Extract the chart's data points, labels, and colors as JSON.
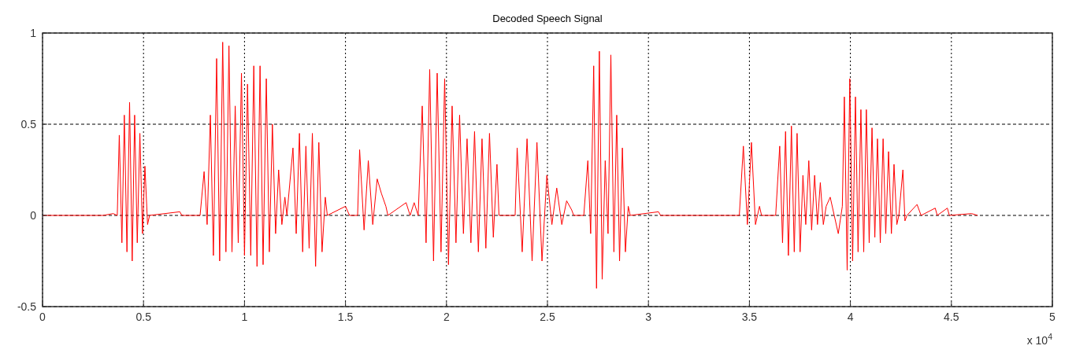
{
  "chart_data": {
    "type": "line",
    "title": "Decoded Speech Signal",
    "annotations": [
      "x 10$^{4}$"
    ],
    "grid": true,
    "line_style": "solid",
    "xlim": [
      0,
      5
    ],
    "xticks": [
      0,
      0.5,
      1,
      1.5,
      2,
      2.5,
      3,
      3.5,
      4,
      4.5,
      5
    ],
    "ylim": [
      -0.5,
      1
    ],
    "yticks": [
      -0.5,
      0,
      0.5,
      1
    ],
    "series": [
      {
        "color": "#ff0000",
        "x": [
          0,
          0.3,
          0.35,
          0.37,
          0.38,
          0.393,
          0.405,
          0.418,
          0.431,
          0.444,
          0.456,
          0.469,
          0.482,
          0.495,
          0.507,
          0.52,
          0.53,
          0.68,
          0.69,
          0.78,
          0.8,
          0.815,
          0.831,
          0.846,
          0.862,
          0.877,
          0.892,
          0.908,
          0.923,
          0.938,
          0.954,
          0.969,
          0.985,
          1.0,
          1.015,
          1.031,
          1.046,
          1.062,
          1.077,
          1.092,
          1.108,
          1.123,
          1.138,
          1.154,
          1.169,
          1.185,
          1.2,
          1.21,
          1.24,
          1.256,
          1.272,
          1.288,
          1.304,
          1.32,
          1.336,
          1.352,
          1.368,
          1.384,
          1.4,
          1.41,
          1.5,
          1.52,
          1.56,
          1.57,
          1.592,
          1.613,
          1.635,
          1.657,
          1.678,
          1.7,
          1.71,
          1.8,
          1.82,
          1.84,
          1.86,
          1.88,
          1.899,
          1.917,
          1.936,
          1.954,
          1.973,
          1.991,
          2.01,
          2.028,
          2.047,
          2.065,
          2.084,
          2.102,
          2.121,
          2.139,
          2.158,
          2.176,
          2.195,
          2.213,
          2.232,
          2.25,
          2.26,
          2.34,
          2.35,
          2.375,
          2.399,
          2.424,
          2.448,
          2.473,
          2.497,
          2.522,
          2.546,
          2.571,
          2.595,
          2.62,
          2.63,
          2.68,
          2.7,
          2.714,
          2.729,
          2.743,
          2.757,
          2.771,
          2.786,
          2.8,
          2.814,
          2.829,
          2.843,
          2.857,
          2.871,
          2.886,
          2.9,
          2.91,
          3.05,
          3.06,
          3.45,
          3.47,
          3.49,
          3.51,
          3.53,
          3.55,
          3.56,
          3.63,
          3.65,
          3.664,
          3.679,
          3.693,
          3.708,
          3.722,
          3.736,
          3.751,
          3.765,
          3.779,
          3.794,
          3.808,
          3.823,
          3.837,
          3.851,
          3.866,
          3.88,
          3.9,
          3.94,
          3.96,
          3.97,
          3.984,
          3.997,
          4.011,
          4.025,
          4.038,
          4.052,
          4.066,
          4.079,
          4.093,
          4.107,
          4.121,
          4.134,
          4.148,
          4.162,
          4.175,
          4.189,
          4.203,
          4.216,
          4.23,
          4.24,
          4.26,
          4.27,
          4.28,
          4.33,
          4.35,
          4.42,
          4.43,
          4.48,
          4.49,
          4.6,
          4.63
        ],
        "values": [
          0,
          0,
          0.01,
          0,
          0.44,
          -0.15,
          0.55,
          -0.2,
          0.62,
          -0.25,
          0.55,
          -0.15,
          0.45,
          -0.1,
          0.27,
          -0.05,
          0,
          0.02,
          0,
          0,
          0.24,
          -0.05,
          0.55,
          -0.22,
          0.86,
          -0.25,
          0.95,
          -0.2,
          0.93,
          -0.2,
          0.6,
          -0.15,
          0.78,
          -0.22,
          0.72,
          -0.22,
          0.82,
          -0.28,
          0.82,
          -0.27,
          0.75,
          -0.2,
          0.5,
          -0.1,
          0.25,
          -0.05,
          0.1,
          0,
          0.37,
          -0.1,
          0.45,
          -0.2,
          0.38,
          -0.18,
          0.45,
          -0.28,
          0.4,
          -0.2,
          0.1,
          0,
          0.05,
          0,
          0,
          0.36,
          -0.08,
          0.3,
          -0.05,
          0.2,
          0.12,
          0.05,
          0,
          0.07,
          0,
          0.07,
          0,
          0.6,
          -0.15,
          0.8,
          -0.25,
          0.78,
          -0.2,
          0.75,
          -0.27,
          0.6,
          -0.15,
          0.55,
          -0.1,
          0.42,
          -0.15,
          0.46,
          -0.2,
          0.42,
          -0.18,
          0.45,
          -0.12,
          0.28,
          0,
          0,
          0.37,
          -0.2,
          0.42,
          -0.25,
          0.4,
          -0.25,
          0.22,
          -0.05,
          0.15,
          -0.05,
          0.08,
          0.03,
          0,
          0,
          0.3,
          -0.1,
          0.82,
          -0.4,
          0.9,
          -0.35,
          0.3,
          -0.1,
          0.88,
          -0.2,
          0.55,
          -0.25,
          0.37,
          -0.2,
          0.05,
          0,
          0.02,
          0,
          0,
          0.38,
          -0.05,
          0.4,
          -0.05,
          0.05,
          0,
          0,
          0.38,
          -0.15,
          0.46,
          -0.22,
          0.49,
          -0.2,
          0.45,
          -0.2,
          0.22,
          -0.05,
          0.3,
          -0.08,
          0.22,
          -0.05,
          0.18,
          -0.05,
          0.05,
          0.1,
          -0.1,
          0.05,
          0.65,
          -0.3,
          0.75,
          -0.25,
          0.65,
          -0.2,
          0.58,
          -0.2,
          0.58,
          -0.15,
          0.48,
          -0.12,
          0.42,
          -0.15,
          0.42,
          -0.1,
          0.35,
          -0.1,
          0.28,
          -0.05,
          0,
          0.25,
          -0.03,
          0,
          0.06,
          0,
          0.04,
          0,
          0.04,
          0,
          0.01,
          0
        ]
      }
    ]
  }
}
